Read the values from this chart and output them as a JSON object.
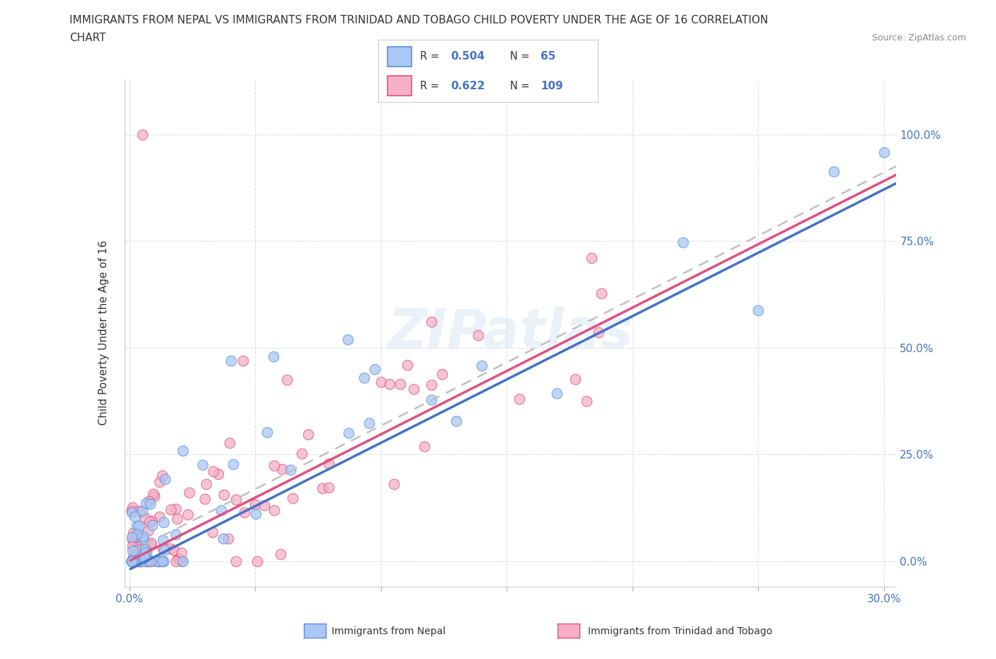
{
  "title_line1": "IMMIGRANTS FROM NEPAL VS IMMIGRANTS FROM TRINIDAD AND TOBAGO CHILD POVERTY UNDER THE AGE OF 16 CORRELATION",
  "title_line2": "CHART",
  "source": "Source: ZipAtlas.com",
  "ylabel": "Child Poverty Under the Age of 16",
  "xlim": [
    -0.002,
    0.305
  ],
  "ylim": [
    -0.06,
    1.13
  ],
  "nepal_color": "#aac8f5",
  "nepal_edge": "#5b8fd6",
  "trinidad_color": "#f5b0c8",
  "trinidad_edge": "#e0507a",
  "nepal_R": 0.504,
  "nepal_N": 65,
  "trinidad_R": 0.622,
  "trinidad_N": 109,
  "watermark": "ZIPatlas",
  "background_color": "#ffffff",
  "grid_color": "#d8d8d8",
  "text_color_blue": "#4472c4",
  "text_color_dark": "#333333",
  "line_blue": "#4472c4",
  "line_pink": "#e05080",
  "line_dashed": "#c0c0c0"
}
